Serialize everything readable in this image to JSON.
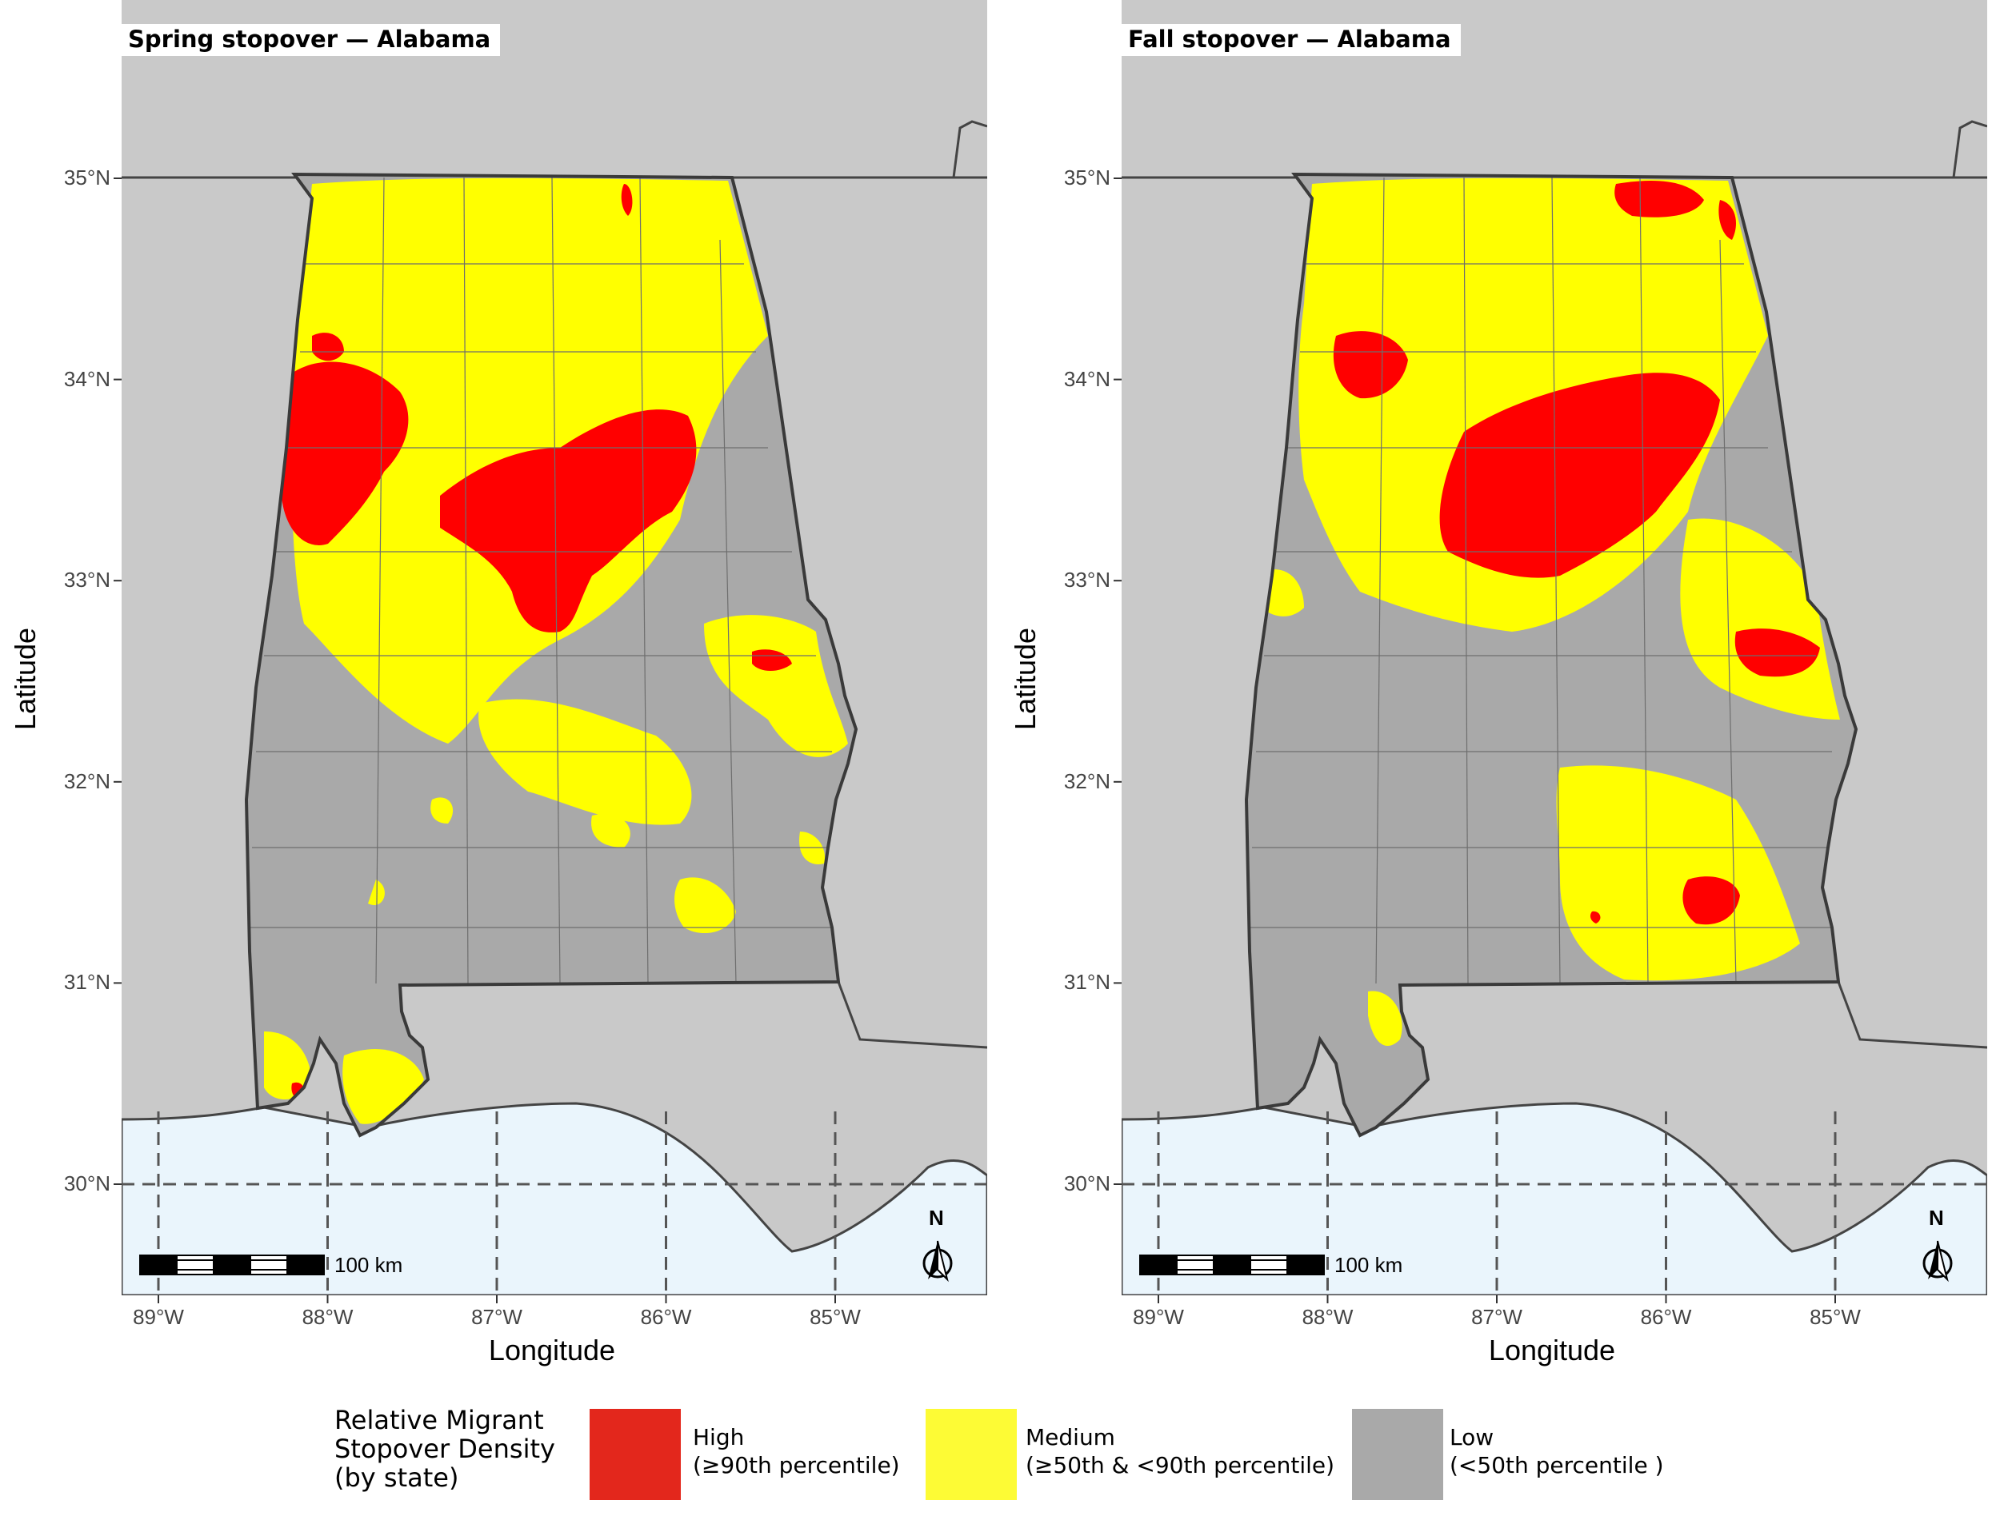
{
  "panels": [
    {
      "title": "Spring stopover — Alabama"
    },
    {
      "title": "Fall stopover — Alabama"
    }
  ],
  "axes": {
    "x_title": "Longitude",
    "y_title": "Latitude",
    "x_ticks": [
      "89°W",
      "88°W",
      "87°W",
      "86°W",
      "85°W"
    ],
    "y_ticks": [
      "35°N",
      "34°N",
      "33°N",
      "32°N",
      "31°N",
      "30°N"
    ]
  },
  "scale_bar": {
    "label": "100 km"
  },
  "north_arrow": {
    "letter": "N"
  },
  "legend": {
    "title_lines": [
      "Relative Migrant",
      "Stopover Density",
      "(by state)"
    ],
    "items": [
      {
        "name": "High",
        "detail": "(≥90th percentile)",
        "color": "#e3271c"
      },
      {
        "name": "Medium",
        "detail": "(≥50th & <90th percentile)",
        "color": "#fdfb35"
      },
      {
        "name": "Low",
        "detail": "(<50th percentile )",
        "color": "#a9a9a9"
      }
    ]
  },
  "colors": {
    "land": "#c9c9c9",
    "water": "#eaf5fc",
    "state_fill": "#a9a9a9",
    "high": "#ff0000",
    "medium": "#ffff00"
  }
}
